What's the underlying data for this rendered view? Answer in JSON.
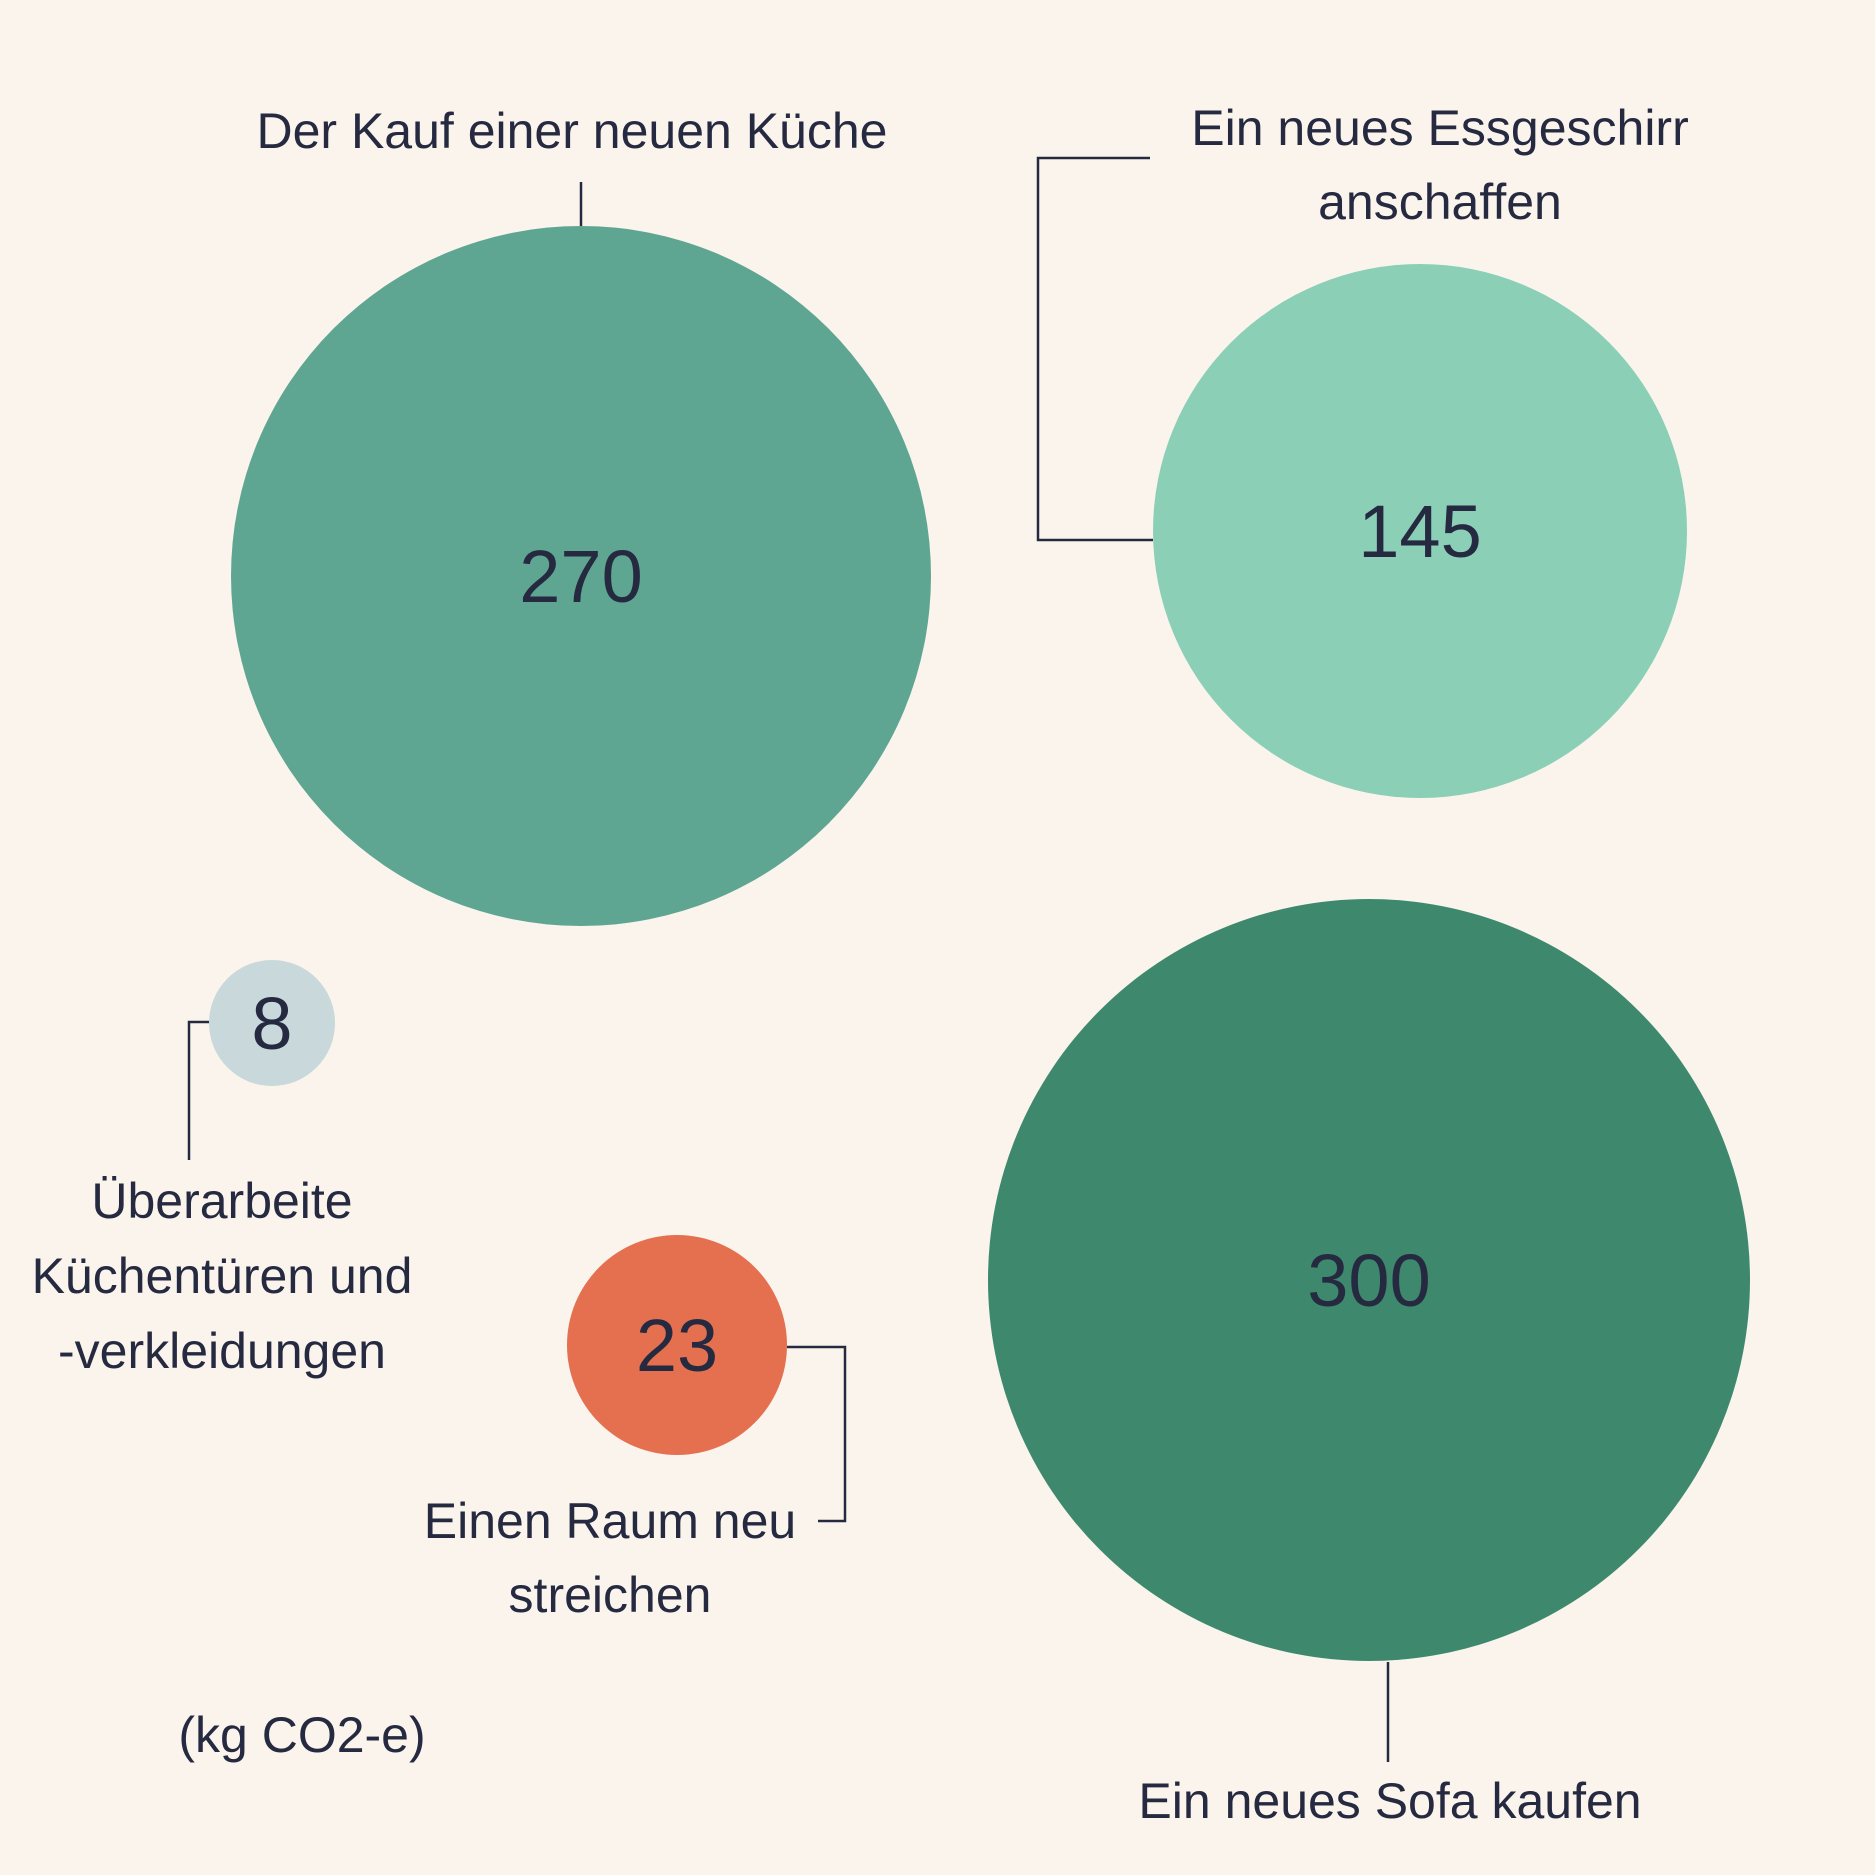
{
  "chart_data": {
    "type": "bubble",
    "unit_note": "(kg CO2-e)",
    "series": [
      {
        "label": [
          "Der Kauf einer neuen Küche"
        ],
        "value": 270,
        "value_label": "270",
        "color": "#5fa692"
      },
      {
        "label": [
          "Ein neues Essgeschirr",
          "anschaffen"
        ],
        "value": 145,
        "value_label": "145",
        "color": "#8ccfb7"
      },
      {
        "label": [
          "Überarbeite",
          "Küchentüren und",
          "-verkleidungen"
        ],
        "value": 8,
        "value_label": "8",
        "color": "#c8d8db"
      },
      {
        "label": [
          "Einen Raum neu",
          "streichen"
        ],
        "value": 23,
        "value_label": "23",
        "color": "#e5704f"
      },
      {
        "label": [
          "Ein neues Sofa kaufen"
        ],
        "value": 300,
        "value_label": "300",
        "color": "#3e896d"
      }
    ]
  }
}
